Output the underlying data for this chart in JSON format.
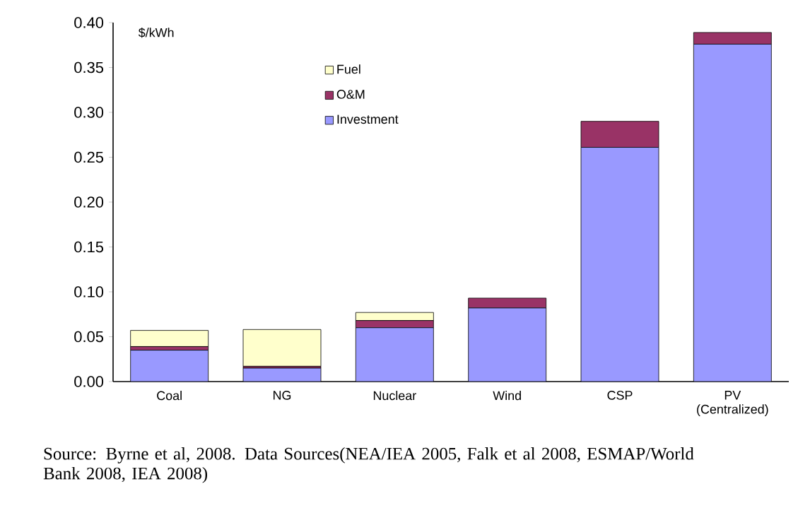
{
  "chart_data": {
    "type": "bar",
    "stacked": true,
    "ylabel": "$/kWh",
    "categories": [
      "Coal",
      "NG",
      "Nuclear",
      "Wind",
      "CSP",
      "PV (Centralized)"
    ],
    "series": [
      {
        "name": "Investment",
        "color": "#9999ff",
        "values": [
          0.035,
          0.015,
          0.06,
          0.082,
          0.261,
          0.376
        ]
      },
      {
        "name": "O&M",
        "color": "#993366",
        "values": [
          0.004,
          0.002,
          0.008,
          0.011,
          0.029,
          0.013
        ]
      },
      {
        "name": "Fuel",
        "color": "#ffffcc",
        "values": [
          0.018,
          0.041,
          0.009,
          0,
          0,
          0
        ]
      }
    ],
    "ylim": [
      0,
      0.4
    ],
    "yticks": [
      {
        "value": 0,
        "label": "0.00"
      },
      {
        "value": 0.05,
        "label": "0.05"
      },
      {
        "value": 0.1,
        "label": "0.10"
      },
      {
        "value": 0.15,
        "label": "0.15"
      },
      {
        "value": 0.2,
        "label": "0.20"
      },
      {
        "value": 0.25,
        "label": "0.25"
      },
      {
        "value": 0.3,
        "label": "0.30"
      },
      {
        "value": 0.35,
        "label": "0.35"
      },
      {
        "value": 0.4,
        "label": "0.40"
      }
    ],
    "legend": "top",
    "annotations": [
      "Source: Byrne et al, 2008. Data Sources(NEA/IEA 2005, Falk et al 2008, ESMAP/World Bank 2008, IEA 2008)"
    ]
  }
}
